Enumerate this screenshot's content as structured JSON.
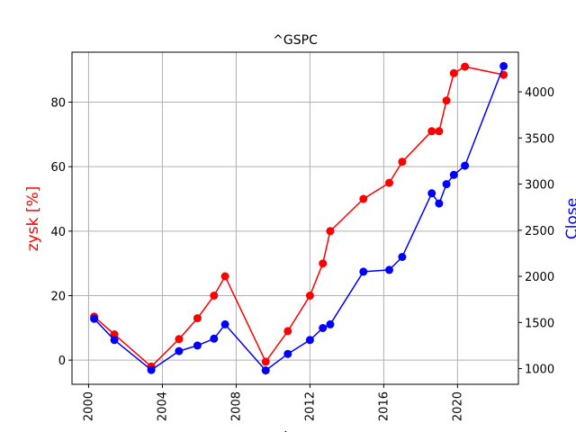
{
  "chart_data": {
    "type": "line",
    "title": "^GSPC",
    "xlabel": "data",
    "ylabel_left": "zysk [%]",
    "ylabel_right": "Close",
    "grid": true,
    "x_ticks": [
      "2000",
      "2004",
      "2008",
      "2012",
      "2016",
      "2020"
    ],
    "y_left_ticks": [
      0,
      20,
      40,
      60,
      80
    ],
    "y_right_ticks": [
      1000,
      1500,
      2000,
      2500,
      3000,
      3500,
      4000
    ],
    "xlim": [
      1999.1,
      2023.3
    ],
    "y_left_lim": [
      -7.5,
      95.5
    ],
    "y_right_lim": [
      830,
      4430
    ],
    "colors": {
      "left": "#ff0000",
      "right": "#0000ff",
      "grid": "#b0b0b0"
    },
    "series": [
      {
        "name": "zysk [%]",
        "axis": "left",
        "color": "#ff0000",
        "x": [
          2000.3,
          2001.4,
          2003.4,
          2004.9,
          2005.9,
          2006.8,
          2007.4,
          2009.6,
          2010.8,
          2012.0,
          2012.7,
          2013.1,
          2014.9,
          2016.3,
          2017.0,
          2018.6,
          2019.0,
          2019.4,
          2019.8,
          2020.4,
          2022.5
        ],
        "values": [
          13.5,
          8.0,
          -2.0,
          6.5,
          13.0,
          20.0,
          26.0,
          -0.5,
          9.0,
          20.0,
          30.0,
          40.0,
          50.0,
          55.0,
          61.5,
          71.0,
          71.0,
          80.5,
          89.0,
          91.0,
          88.5
        ]
      },
      {
        "name": "Close",
        "axis": "right",
        "color": "#0000ff",
        "x": [
          2000.3,
          2001.4,
          2003.4,
          2004.9,
          2005.9,
          2006.8,
          2007.4,
          2009.6,
          2010.8,
          2012.0,
          2012.7,
          2013.1,
          2014.9,
          2016.3,
          2017.0,
          2018.6,
          2019.0,
          2019.4,
          2019.8,
          2020.4,
          2022.5
        ],
        "values": [
          1540,
          1310,
          985,
          1190,
          1250,
          1325,
          1480,
          980,
          1160,
          1310,
          1440,
          1480,
          2050,
          2070,
          2210,
          2900,
          2790,
          3000,
          3100,
          3200,
          4280
        ]
      }
    ]
  }
}
